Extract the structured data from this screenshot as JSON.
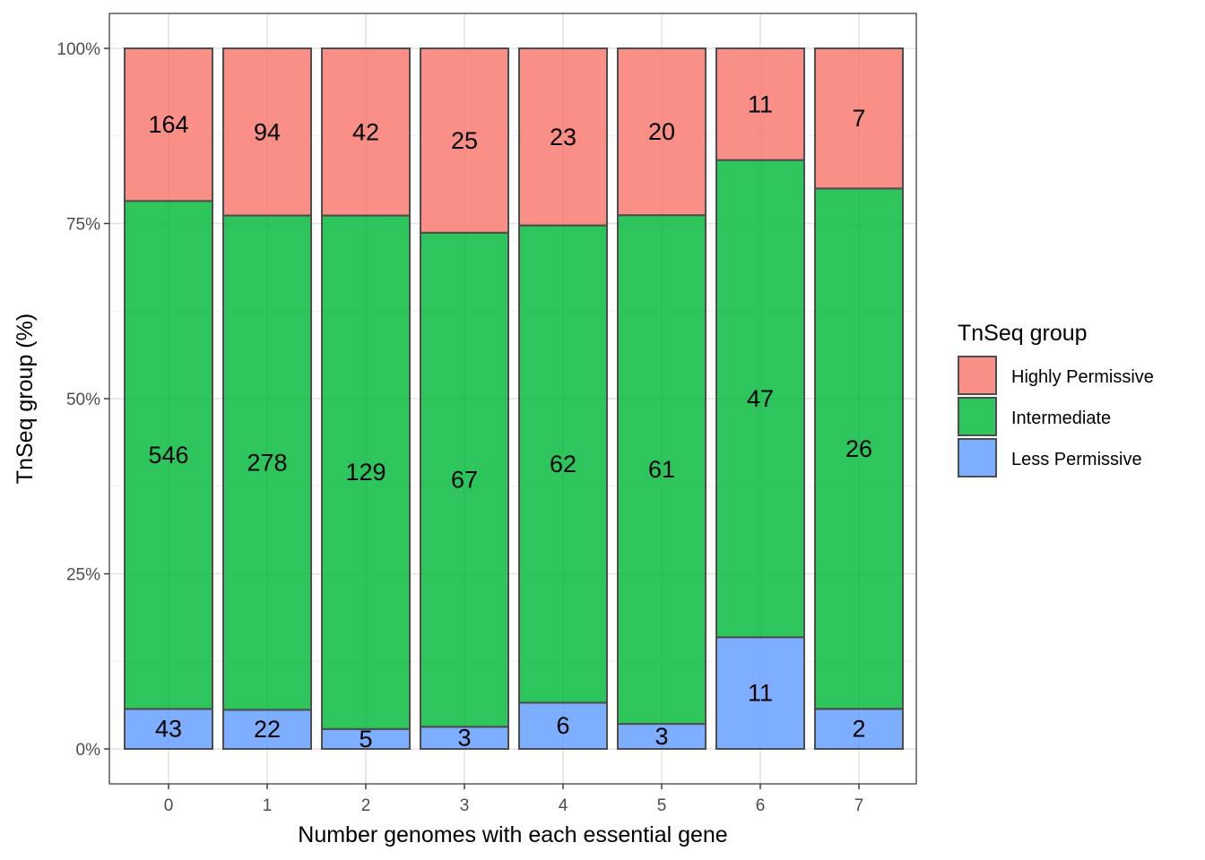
{
  "chart_data": {
    "type": "bar",
    "stacked": "percent",
    "xlabel": "Number genomes with each essential gene",
    "ylabel": "TnSeq group (%)",
    "categories": [
      "0",
      "1",
      "2",
      "3",
      "4",
      "5",
      "6",
      "7"
    ],
    "yticks": [
      "0%",
      "25%",
      "50%",
      "75%",
      "100%"
    ],
    "ylim": [
      0,
      100
    ],
    "grid": true,
    "legend": {
      "title": "TnSeq group",
      "placement": "right"
    },
    "series": [
      {
        "name": "Highly Permissive",
        "color": "#F8766D",
        "values": [
          164,
          94,
          42,
          25,
          23,
          20,
          11,
          7
        ]
      },
      {
        "name": "Intermediate",
        "color": "#00BA38",
        "values": [
          546,
          278,
          129,
          67,
          62,
          61,
          47,
          26
        ]
      },
      {
        "name": "Less Permissive",
        "color": "#619CFF",
        "values": [
          43,
          22,
          5,
          3,
          6,
          3,
          11,
          2
        ]
      }
    ]
  }
}
